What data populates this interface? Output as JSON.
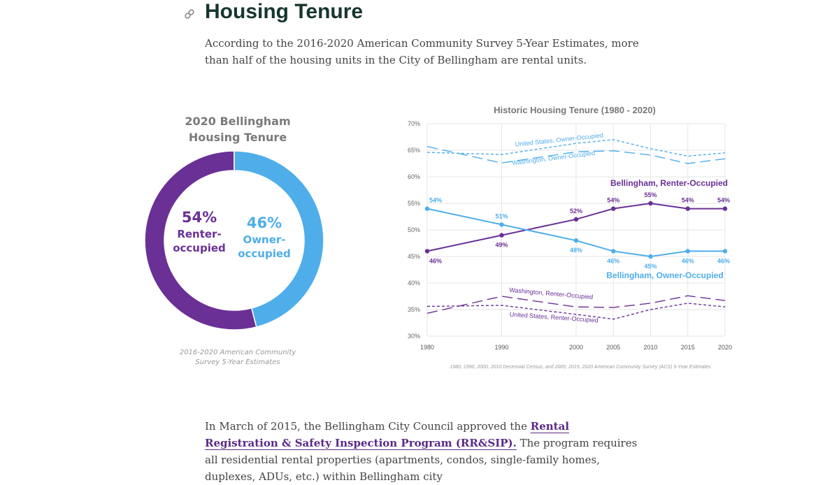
{
  "header": {
    "title": "Housing Tenure",
    "intro": "According to the 2016-2020 American Community Survey 5-Year Estimates, more than half of the housing units in the City of Bellingham are rental units."
  },
  "chart_data": [
    {
      "type": "pie",
      "donut": true,
      "title": "2020 Bellingham Housing Tenure",
      "categories": [
        "Renter-occupied",
        "Owner-occupied"
      ],
      "values": [
        54,
        46
      ],
      "value_labels": [
        "54%",
        "46%"
      ],
      "colors": [
        "#6a3096",
        "#4faeea"
      ],
      "source": "2016-2020 American Community Survey 5-Year Estimates"
    },
    {
      "type": "line",
      "title": "Historic Housing Tenure (1980 - 2020)",
      "x": [
        1980,
        1990,
        2000,
        2005,
        2010,
        2015,
        2020
      ],
      "xlim": [
        1980,
        2020
      ],
      "xticks": [
        1980,
        1990,
        2000,
        2005,
        2010,
        2015,
        2020
      ],
      "ylim": [
        30,
        70
      ],
      "yticks": [
        {
          "value": 30,
          "label": "30%"
        },
        {
          "value": 35,
          "label": "35%"
        },
        {
          "value": 40,
          "label": "40%"
        },
        {
          "value": 45,
          "label": "45%"
        },
        {
          "value": 50,
          "label": "50%"
        },
        {
          "value": 55,
          "label": "55%"
        },
        {
          "value": 60,
          "label": "60%"
        },
        {
          "value": 65,
          "label": "65%"
        },
        {
          "value": 70,
          "label": "70%"
        }
      ],
      "grid": true,
      "series": [
        {
          "name": "Bellingham, Renter-Occupied",
          "color": "#6a3096",
          "dash": "solid",
          "markers": true,
          "values": [
            46,
            49,
            52,
            54,
            55,
            54,
            54
          ],
          "value_labels": [
            "46%",
            "49%",
            "52%",
            "54%",
            "55%",
            "54%",
            "54%"
          ]
        },
        {
          "name": "Bellingham, Owner-Occupied",
          "color": "#4faeea",
          "dash": "solid",
          "markers": true,
          "values": [
            54,
            51,
            48,
            46,
            45,
            46,
            46
          ],
          "value_labels": [
            "54%",
            "51%",
            "48%",
            "46%",
            "45%",
            "46%",
            "46%"
          ]
        },
        {
          "name": "United States, Owner-Occupied",
          "color": "#4faeea",
          "dash": "short",
          "markers": false,
          "values": [
            64.6,
            64.2,
            66.3,
            67.0,
            65.3,
            63.9,
            64.5
          ]
        },
        {
          "name": "Washington, Owner-Occupied",
          "color": "#4faeea",
          "dash": "long",
          "markers": false,
          "values": [
            65.7,
            62.6,
            64.7,
            64.9,
            64.1,
            62.5,
            63.4
          ]
        },
        {
          "name": "Washington, Renter-Occupied",
          "color": "#6a3096",
          "dash": "long",
          "markers": false,
          "values": [
            34.3,
            37.5,
            35.5,
            35.4,
            36.2,
            37.6,
            36.7
          ]
        },
        {
          "name": "United States, Renter-Occupied",
          "color": "#6a3096",
          "dash": "short",
          "markers": false,
          "values": [
            35.6,
            35.8,
            34.1,
            33.2,
            35.0,
            36.2,
            35.5
          ]
        }
      ],
      "source": "1980, 1990, 2000, 2010 Decennial Census, and 2005, 2015, 2020 American Community Survey (ACS) 5-Year Estimates"
    }
  ],
  "body": {
    "text_before": "In March of 2015, the Bellingham City Council approved the ",
    "link": "Rental Registration & Safety Inspection Program (RR&SIP).",
    "text_after": "  The program requires all residential rental properties (apartments, condos, single-family homes, duplexes, ADUs, etc.) within Bellingham city"
  }
}
